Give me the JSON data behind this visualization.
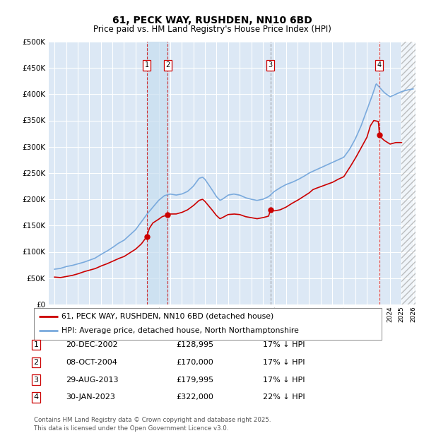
{
  "title_line1": "61, PECK WAY, RUSHDEN, NN10 6BD",
  "title_line2": "Price paid vs. HM Land Registry's House Price Index (HPI)",
  "legend_label_red": "61, PECK WAY, RUSHDEN, NN10 6BD (detached house)",
  "legend_label_blue": "HPI: Average price, detached house, North Northamptonshire",
  "footer": "Contains HM Land Registry data © Crown copyright and database right 2025.\nThis data is licensed under the Open Government Licence v3.0.",
  "transactions": [
    {
      "num": 1,
      "date": "20-DEC-2002",
      "price": 128995,
      "pct": "17%",
      "dir": "↓",
      "year": 2002.97
    },
    {
      "num": 2,
      "date": "08-OCT-2004",
      "price": 170000,
      "pct": "17%",
      "dir": "↓",
      "year": 2004.77
    },
    {
      "num": 3,
      "date": "29-AUG-2013",
      "price": 179995,
      "pct": "17%",
      "dir": "↓",
      "year": 2013.66
    },
    {
      "num": 4,
      "date": "30-JAN-2023",
      "price": 322000,
      "pct": "22%",
      "dir": "↓",
      "year": 2023.08
    }
  ],
  "bg_color": "#dde8f0",
  "plot_bg": "#dce8f5",
  "grid_color": "#ffffff",
  "hpi_color": "#7aaadd",
  "red_color": "#cc0000",
  "vline_color": "#cc0000",
  "marker_box_color": "#cc0000",
  "ylim": [
    0,
    500000
  ],
  "yticks": [
    0,
    50000,
    100000,
    150000,
    200000,
    250000,
    300000,
    350000,
    400000,
    450000,
    500000
  ],
  "xlim_left": 1994.5,
  "xlim_right": 2026.2
}
